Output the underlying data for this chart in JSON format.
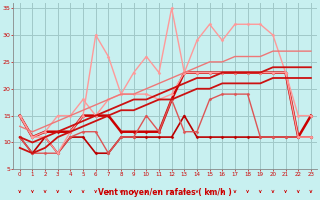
{
  "bg_color": "#c8f0f0",
  "grid_color": "#a0c8c8",
  "xlabel": "Vent moyen/en rafales ( km/h )",
  "xlabel_color": "#cc0000",
  "tick_color": "#cc0000",
  "xlim": [
    -0.5,
    23.5
  ],
  "ylim": [
    5,
    36
  ],
  "yticks": [
    5,
    10,
    15,
    20,
    25,
    30,
    35
  ],
  "xticks": [
    0,
    1,
    2,
    3,
    4,
    5,
    6,
    7,
    8,
    9,
    10,
    11,
    12,
    13,
    14,
    15,
    16,
    17,
    18,
    19,
    20,
    21,
    22,
    23
  ],
  "series": [
    {
      "x": [
        0,
        1,
        2,
        3,
        4,
        5,
        6,
        7,
        8,
        9,
        10,
        11,
        12,
        13,
        14,
        15,
        16,
        17,
        18,
        19,
        20,
        21,
        22,
        23
      ],
      "y": [
        11,
        8,
        11,
        8,
        11,
        11,
        8,
        8,
        11,
        11,
        11,
        11,
        11,
        15,
        11,
        11,
        11,
        11,
        11,
        11,
        11,
        11,
        11,
        11
      ],
      "color": "#bb0000",
      "lw": 1.2,
      "marker": "D",
      "ms": 1.5
    },
    {
      "x": [
        0,
        1,
        2,
        3,
        4,
        5,
        6,
        7,
        8,
        9,
        10,
        11,
        12,
        13,
        14,
        15,
        16,
        17,
        18,
        19,
        20,
        21,
        22,
        23
      ],
      "y": [
        15,
        11,
        12,
        12,
        12,
        15,
        15,
        15,
        12,
        12,
        12,
        12,
        18,
        23,
        23,
        23,
        23,
        23,
        23,
        23,
        23,
        23,
        11,
        15
      ],
      "color": "#cc0000",
      "lw": 1.8,
      "marker": "D",
      "ms": 1.5
    },
    {
      "x": [
        0,
        1,
        2,
        3,
        4,
        5,
        6,
        7,
        8,
        9,
        10,
        11,
        12,
        13,
        14,
        15,
        16,
        17,
        18,
        19,
        20,
        21,
        22,
        23
      ],
      "y": [
        11,
        8,
        8,
        8,
        11,
        12,
        12,
        8,
        11,
        11,
        15,
        12,
        18,
        12,
        12,
        18,
        19,
        19,
        19,
        11,
        11,
        11,
        11,
        11
      ],
      "color": "#dd5555",
      "lw": 1.0,
      "marker": "D",
      "ms": 1.5
    },
    {
      "x": [
        0,
        1,
        2,
        3,
        4,
        5,
        6,
        7,
        8,
        9,
        10,
        11,
        12,
        13,
        14,
        15,
        16,
        17,
        18,
        19,
        20,
        21,
        22,
        23
      ],
      "y": [
        15,
        11,
        12,
        15,
        15,
        18,
        15,
        18,
        19,
        19,
        19,
        18,
        19,
        23,
        23,
        23,
        23,
        23,
        23,
        23,
        23,
        23,
        15,
        15
      ],
      "color": "#ff9999",
      "lw": 1.0,
      "marker": "D",
      "ms": 1.5
    },
    {
      "x": [
        0,
        1,
        2,
        3,
        4,
        5,
        6,
        7,
        8,
        9,
        10,
        11,
        12,
        13,
        14,
        15,
        16,
        17,
        18,
        19,
        20,
        21,
        22,
        23
      ],
      "y": [
        15,
        11,
        11,
        8,
        12,
        15,
        30,
        26,
        19,
        23,
        26,
        23,
        35,
        23,
        29,
        32,
        29,
        32,
        32,
        32,
        30,
        23,
        11,
        11
      ],
      "color": "#ff9999",
      "lw": 1.0,
      "marker": "D",
      "ms": 1.5
    },
    {
      "x": [
        0,
        1,
        2,
        3,
        4,
        5,
        6,
        7,
        8,
        9,
        10,
        11,
        12,
        13,
        14,
        15,
        16,
        17,
        18,
        19,
        20,
        21,
        22,
        23
      ],
      "y": [
        9,
        8,
        9,
        11,
        12,
        13,
        14,
        15,
        16,
        16,
        17,
        18,
        18,
        19,
        20,
        20,
        21,
        21,
        21,
        21,
        22,
        22,
        22,
        22
      ],
      "color": "#cc1111",
      "lw": 1.3,
      "marker": null,
      "ms": 0
    },
    {
      "x": [
        0,
        1,
        2,
        3,
        4,
        5,
        6,
        7,
        8,
        9,
        10,
        11,
        12,
        13,
        14,
        15,
        16,
        17,
        18,
        19,
        20,
        21,
        22,
        23
      ],
      "y": [
        11,
        10,
        11,
        12,
        13,
        14,
        15,
        16,
        17,
        18,
        18,
        19,
        20,
        21,
        22,
        22,
        23,
        23,
        23,
        23,
        24,
        24,
        24,
        24
      ],
      "color": "#cc1111",
      "lw": 1.3,
      "marker": null,
      "ms": 0
    },
    {
      "x": [
        0,
        1,
        2,
        3,
        4,
        5,
        6,
        7,
        8,
        9,
        10,
        11,
        12,
        13,
        14,
        15,
        16,
        17,
        18,
        19,
        20,
        21,
        22,
        23
      ],
      "y": [
        13,
        12,
        13,
        14,
        15,
        16,
        17,
        18,
        19,
        19,
        20,
        21,
        22,
        23,
        24,
        25,
        25,
        26,
        26,
        26,
        27,
        27,
        27,
        27
      ],
      "color": "#ee7777",
      "lw": 1.0,
      "marker": null,
      "ms": 0
    }
  ]
}
